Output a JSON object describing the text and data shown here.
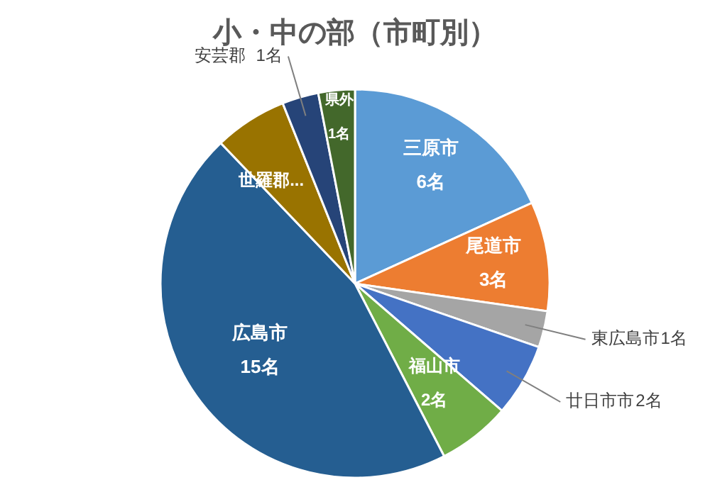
{
  "chart_data": {
    "type": "pie",
    "title": "小・中の部（市町別）",
    "categories": [
      "三原市",
      "尾道市",
      "東広島市",
      "廿日市市",
      "福山市",
      "広島市",
      "世羅郡...",
      "安芸郡",
      "県外"
    ],
    "values": [
      6,
      3,
      1,
      2,
      2,
      15,
      2,
      1,
      1
    ],
    "colors": [
      "#5b9bd5",
      "#ed7d31",
      "#a5a5a5",
      "#4472c4",
      "#70ad47",
      "#255e91",
      "#997300",
      "#264478",
      "#43682b"
    ],
    "value_labels": [
      "6名",
      "3名",
      "1名",
      "2名",
      "2名",
      "15名",
      null,
      "1名",
      "1名"
    ],
    "legend": false
  }
}
